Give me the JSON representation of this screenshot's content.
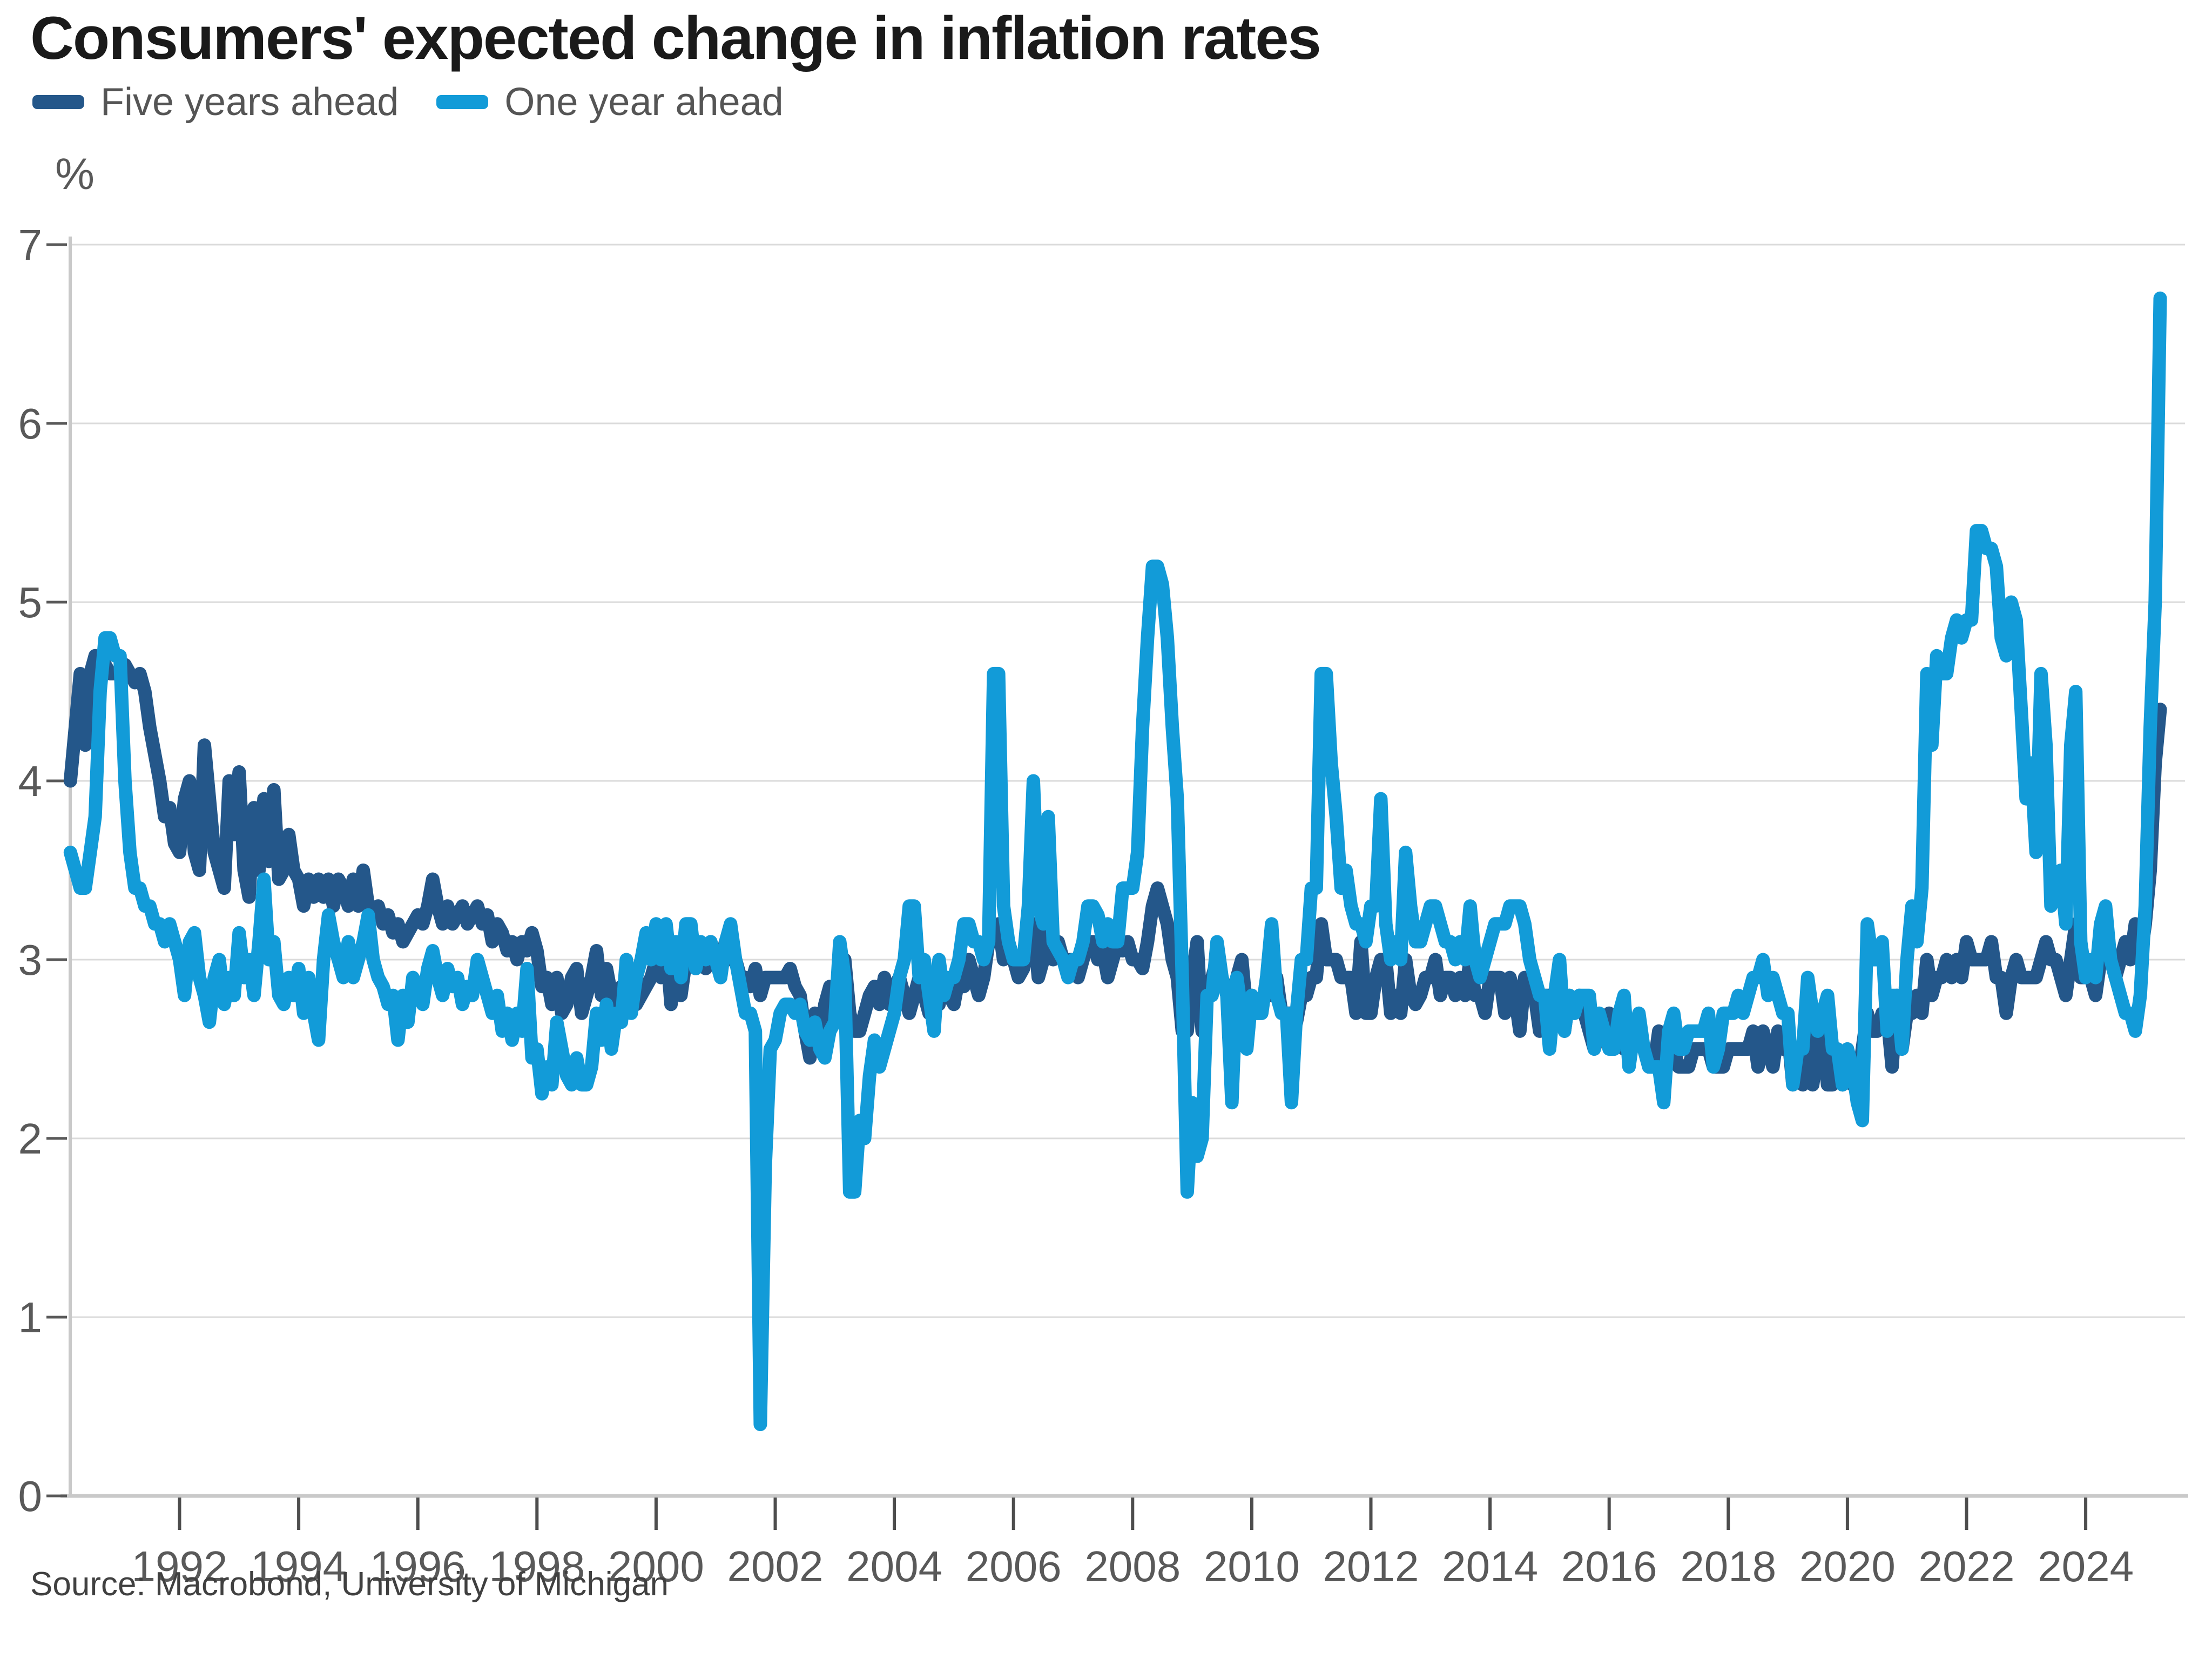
{
  "header": {
    "title": "Consumers' expected change in inflation rates"
  },
  "footer": {
    "source": "Source: Macrobond, University of Michigan"
  },
  "colors": {
    "five_year_line": "#24578A",
    "one_year_line": "#129BD8",
    "grid": "#DBDBDB",
    "axis": "#C9C9C9",
    "tick": "#595959",
    "title_text": "#1A1A1A",
    "label_text": "#595959",
    "legend_text": "#555555",
    "source_text": "#404040",
    "background": "#FFFFFF"
  },
  "chart_data": {
    "type": "line",
    "title": "Consumers' expected change in inflation rates",
    "xlabel": "",
    "ylabel": "%",
    "ylim": [
      0,
      7
    ],
    "y_ticks": [
      0,
      1,
      2,
      3,
      4,
      5,
      6,
      7
    ],
    "x_ticks": [
      1992,
      1994,
      1996,
      1998,
      2000,
      2002,
      2004,
      2006,
      2008,
      2010,
      2012,
      2014,
      2016,
      2018,
      2020,
      2022,
      2024
    ],
    "grid": "horizontal",
    "legend_position": "top-left",
    "frequency": "monthly",
    "start_year": 1990,
    "start_month": 3,
    "end_year": 2025,
    "end_month": 4,
    "series": [
      {
        "name": "Five years ahead",
        "color": "#24578A",
        "values": [
          4.0,
          4.3,
          4.6,
          4.2,
          4.6,
          4.7,
          4.6,
          4.65,
          4.6,
          4.6,
          4.6,
          4.65,
          4.6,
          4.55,
          4.6,
          4.5,
          4.3,
          4.15,
          4.0,
          3.8,
          3.85,
          3.65,
          3.6,
          3.9,
          4.0,
          3.6,
          3.5,
          4.2,
          3.9,
          3.6,
          3.5,
          3.4,
          4.0,
          3.7,
          4.05,
          3.5,
          3.35,
          3.85,
          3.5,
          3.9,
          3.55,
          3.95,
          3.45,
          3.5,
          3.7,
          3.5,
          3.45,
          3.3,
          3.45,
          3.35,
          3.45,
          3.35,
          3.45,
          3.3,
          3.45,
          3.4,
          3.3,
          3.45,
          3.3,
          3.5,
          3.3,
          3.25,
          3.3,
          3.2,
          3.25,
          3.15,
          3.2,
          3.1,
          3.15,
          3.2,
          3.25,
          3.2,
          3.3,
          3.45,
          3.3,
          3.2,
          3.3,
          3.2,
          3.25,
          3.3,
          3.2,
          3.25,
          3.3,
          3.2,
          3.25,
          3.1,
          3.2,
          3.15,
          3.05,
          3.1,
          3.0,
          3.1,
          3.05,
          3.15,
          3.05,
          2.85,
          2.9,
          2.75,
          2.9,
          2.7,
          2.75,
          2.9,
          2.95,
          2.7,
          2.8,
          2.9,
          3.05,
          2.8,
          2.95,
          2.8,
          2.7,
          2.85,
          2.8,
          2.8,
          2.75,
          2.8,
          2.85,
          2.9,
          3.0,
          2.9,
          3.1,
          2.75,
          3.05,
          2.8,
          3.0,
          3.0,
          2.95,
          3.0,
          2.95,
          3.1,
          3.0,
          3.0,
          3.1,
          3.0,
          3.0,
          2.9,
          2.9,
          2.85,
          2.95,
          2.8,
          2.9,
          2.9,
          2.9,
          2.9,
          2.9,
          2.95,
          2.85,
          2.8,
          2.6,
          2.45,
          2.7,
          2.5,
          2.75,
          2.85,
          2.8,
          2.9,
          3.0,
          2.7,
          2.6,
          2.6,
          2.7,
          2.8,
          2.85,
          2.75,
          2.9,
          2.75,
          2.85,
          2.9,
          2.8,
          2.7,
          2.8,
          2.9,
          2.8,
          2.7,
          2.8,
          2.75,
          2.9,
          2.8,
          2.75,
          2.9,
          2.85,
          3.0,
          2.9,
          2.8,
          2.9,
          3.1,
          3.1,
          3.2,
          3.0,
          3.1,
          3.0,
          2.9,
          2.95,
          3.1,
          3.2,
          2.9,
          3.0,
          3.2,
          3.0,
          3.1,
          3.0,
          3.0,
          3.0,
          2.9,
          3.0,
          3.1,
          3.1,
          3.0,
          3.05,
          2.9,
          3.0,
          3.1,
          3.05,
          3.1,
          3.0,
          3.0,
          2.95,
          3.1,
          3.3,
          3.4,
          3.3,
          3.2,
          3.0,
          2.9,
          2.6,
          2.6,
          2.9,
          3.1,
          2.6,
          2.8,
          2.9,
          3.0,
          2.9,
          2.8,
          2.8,
          2.9,
          3.0,
          2.7,
          2.8,
          2.7,
          2.7,
          2.9,
          2.8,
          2.9,
          2.7,
          2.7,
          2.7,
          2.65,
          2.8,
          2.8,
          2.9,
          2.9,
          3.2,
          3.0,
          3.0,
          3.0,
          2.9,
          2.9,
          2.9,
          2.7,
          3.1,
          2.7,
          2.7,
          2.9,
          3.0,
          3.0,
          2.7,
          2.8,
          2.7,
          3.0,
          2.8,
          2.75,
          2.8,
          2.9,
          2.9,
          3.0,
          2.8,
          2.9,
          2.9,
          2.8,
          2.9,
          2.8,
          3.0,
          2.8,
          2.8,
          2.7,
          2.9,
          2.9,
          2.9,
          2.7,
          2.9,
          2.8,
          2.6,
          2.9,
          2.8,
          2.8,
          2.6,
          2.8,
          2.8,
          2.7,
          2.8,
          2.6,
          2.8,
          2.7,
          2.8,
          2.7,
          2.6,
          2.5,
          2.6,
          2.6,
          2.7,
          2.5,
          2.7,
          2.5,
          2.5,
          2.6,
          2.6,
          2.5,
          2.4,
          2.4,
          2.6,
          2.3,
          2.5,
          2.5,
          2.4,
          2.4,
          2.4,
          2.5,
          2.5,
          2.5,
          2.5,
          2.4,
          2.4,
          2.4,
          2.5,
          2.5,
          2.5,
          2.5,
          2.5,
          2.6,
          2.4,
          2.6,
          2.5,
          2.4,
          2.6,
          2.5,
          2.6,
          2.3,
          2.5,
          2.3,
          2.6,
          2.3,
          2.5,
          2.6,
          2.3,
          2.3,
          2.5,
          2.3,
          2.5,
          2.3,
          2.3,
          2.5,
          2.7,
          2.6,
          2.6,
          2.7,
          2.7,
          2.4,
          2.8,
          2.5,
          2.7,
          2.7,
          2.8,
          2.7,
          3.0,
          2.8,
          2.9,
          2.9,
          3.0,
          2.9,
          3.0,
          2.9,
          3.1,
          3.0,
          3.0,
          3.0,
          3.0,
          3.1,
          2.9,
          2.9,
          2.7,
          2.9,
          3.0,
          2.9,
          2.9,
          2.9,
          2.9,
          3.0,
          3.1,
          3.0,
          3.0,
          2.9,
          2.8,
          3.0,
          3.2,
          2.9,
          2.9,
          2.9,
          2.8,
          3.0,
          3.0,
          3.0,
          2.9,
          3.0,
          3.1,
          3.0,
          3.2,
          3.0,
          3.2,
          3.5,
          4.1,
          4.4
        ]
      },
      {
        "name": "One year ahead",
        "color": "#129BD8",
        "values": [
          3.6,
          3.5,
          3.4,
          3.4,
          3.6,
          3.8,
          4.5,
          4.8,
          4.8,
          4.7,
          4.7,
          4.0,
          3.6,
          3.4,
          3.4,
          3.3,
          3.3,
          3.2,
          3.2,
          3.1,
          3.2,
          3.1,
          3.0,
          2.8,
          3.1,
          3.15,
          2.9,
          2.8,
          2.65,
          2.9,
          3.0,
          2.75,
          2.9,
          2.8,
          3.15,
          2.9,
          3.0,
          2.8,
          3.1,
          3.45,
          3.0,
          3.1,
          2.8,
          2.75,
          2.9,
          2.8,
          2.95,
          2.7,
          2.9,
          2.7,
          2.55,
          3.0,
          3.25,
          3.1,
          3.0,
          2.9,
          3.1,
          2.9,
          3.0,
          3.1,
          3.25,
          3.0,
          2.9,
          2.85,
          2.75,
          2.8,
          2.55,
          2.8,
          2.65,
          2.9,
          2.85,
          2.75,
          2.95,
          3.05,
          2.9,
          2.8,
          2.95,
          2.85,
          2.9,
          2.75,
          2.85,
          2.8,
          3.0,
          2.9,
          2.8,
          2.7,
          2.8,
          2.6,
          2.7,
          2.55,
          2.7,
          2.6,
          2.95,
          2.45,
          2.5,
          2.25,
          2.4,
          2.3,
          2.65,
          2.5,
          2.35,
          2.3,
          2.45,
          2.3,
          2.3,
          2.4,
          2.7,
          2.55,
          2.75,
          2.5,
          2.7,
          2.65,
          3.0,
          2.7,
          2.9,
          3.0,
          3.15,
          3.0,
          3.2,
          3.0,
          3.2,
          2.95,
          3.1,
          2.9,
          3.2,
          3.2,
          2.95,
          3.1,
          3.0,
          3.1,
          3.0,
          2.9,
          3.1,
          3.2,
          3.0,
          2.85,
          2.7,
          2.7,
          2.6,
          0.4,
          1.85,
          2.5,
          2.55,
          2.7,
          2.75,
          2.75,
          2.7,
          2.75,
          2.6,
          2.55,
          2.65,
          2.5,
          2.45,
          2.6,
          2.65,
          3.1,
          2.9,
          1.7,
          1.7,
          2.1,
          2.0,
          2.35,
          2.55,
          2.4,
          2.5,
          2.6,
          2.7,
          2.9,
          3.0,
          3.3,
          3.3,
          2.9,
          3.0,
          2.8,
          2.6,
          3.0,
          2.8,
          2.9,
          2.9,
          3.0,
          3.2,
          3.2,
          3.1,
          3.1,
          3.0,
          3.1,
          4.6,
          4.6,
          3.3,
          3.1,
          3.0,
          3.0,
          3.0,
          3.3,
          4.0,
          3.3,
          3.2,
          3.8,
          3.1,
          3.05,
          3.0,
          2.9,
          3.0,
          3.0,
          3.1,
          3.3,
          3.3,
          3.25,
          3.1,
          3.2,
          3.1,
          3.1,
          3.4,
          3.4,
          3.4,
          3.6,
          4.3,
          4.8,
          5.2,
          5.2,
          5.1,
          4.8,
          4.3,
          3.9,
          2.9,
          1.7,
          2.2,
          1.9,
          2.0,
          2.8,
          2.8,
          3.1,
          2.9,
          2.8,
          2.2,
          2.9,
          2.7,
          2.5,
          2.8,
          2.7,
          2.7,
          2.9,
          3.2,
          2.8,
          2.7,
          2.7,
          2.2,
          2.7,
          3.0,
          3.0,
          3.4,
          3.4,
          4.6,
          4.6,
          4.1,
          3.8,
          3.4,
          3.5,
          3.3,
          3.2,
          3.2,
          3.1,
          3.3,
          3.3,
          3.9,
          3.2,
          3.0,
          3.1,
          3.0,
          3.6,
          3.3,
          3.1,
          3.1,
          3.2,
          3.3,
          3.3,
          3.2,
          3.1,
          3.1,
          3.0,
          3.1,
          3.0,
          3.3,
          3.0,
          2.9,
          3.0,
          3.1,
          3.2,
          3.2,
          3.2,
          3.3,
          3.3,
          3.3,
          3.2,
          3.0,
          2.9,
          2.8,
          2.8,
          2.5,
          2.8,
          3.0,
          2.6,
          2.8,
          2.7,
          2.8,
          2.8,
          2.8,
          2.5,
          2.7,
          2.6,
          2.5,
          2.5,
          2.7,
          2.8,
          2.4,
          2.6,
          2.7,
          2.5,
          2.4,
          2.4,
          2.4,
          2.2,
          2.6,
          2.7,
          2.5,
          2.5,
          2.6,
          2.6,
          2.6,
          2.6,
          2.7,
          2.4,
          2.5,
          2.7,
          2.7,
          2.7,
          2.8,
          2.7,
          2.8,
          2.9,
          2.9,
          3.0,
          2.8,
          2.9,
          2.8,
          2.7,
          2.7,
          2.3,
          2.5,
          2.5,
          2.9,
          2.7,
          2.6,
          2.7,
          2.8,
          2.5,
          2.5,
          2.3,
          2.5,
          2.4,
          2.2,
          2.1,
          3.2,
          3.0,
          3.0,
          3.1,
          2.6,
          2.8,
          2.8,
          2.5,
          3.0,
          3.3,
          3.1,
          3.4,
          4.6,
          4.2,
          4.7,
          4.6,
          4.6,
          4.8,
          4.9,
          4.8,
          4.9,
          4.9,
          5.4,
          5.4,
          5.3,
          5.3,
          5.2,
          4.8,
          4.7,
          5.0,
          4.9,
          4.4,
          3.9,
          4.1,
          3.6,
          4.6,
          4.2,
          3.3,
          3.4,
          3.5,
          3.2,
          4.2,
          4.5,
          3.1,
          2.9,
          3.0,
          2.9,
          3.2,
          3.3,
          3.0,
          2.9,
          2.8,
          2.7,
          2.7,
          2.6,
          2.8,
          3.3,
          4.3,
          5.0,
          6.7
        ]
      }
    ]
  }
}
